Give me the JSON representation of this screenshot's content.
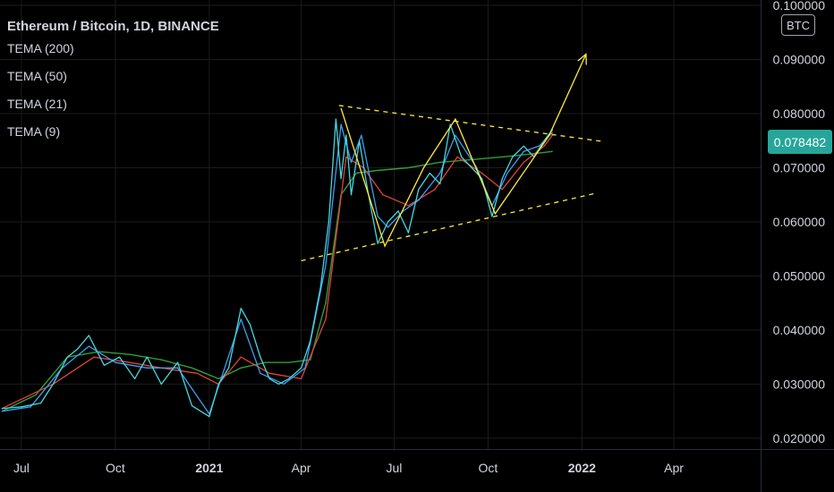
{
  "header": {
    "title": "Ethereum / Bitcoin, 1D, BINANCE",
    "indicators": [
      "TEMA (200)",
      "TEMA (50)",
      "TEMA (21)",
      "TEMA (9)"
    ]
  },
  "price_axis": {
    "unit_button": "BTC",
    "current_price": "0.078482",
    "current_price_color": "#26a69a"
  },
  "colors": {
    "background": "#000000",
    "grid": "#1c1c1c",
    "tema200": "#2e9e3a",
    "tema50": "#e0443a",
    "tema21": "#3aa0f0",
    "tema9": "#46d7e0",
    "annotation": "#ffeb3b"
  },
  "chart_data": {
    "type": "line",
    "title": "Ethereum / Bitcoin, 1D, BINANCE",
    "xlabel": "",
    "ylabel": "",
    "x_ticks": [
      "Jul",
      "Oct",
      "2021",
      "Apr",
      "Jul",
      "Oct",
      "2022",
      "Apr"
    ],
    "y_ticks": [
      "0.020000",
      "0.030000",
      "0.040000",
      "0.050000",
      "0.060000",
      "0.070000",
      "0.080000",
      "0.090000",
      "0.100000"
    ],
    "ylim": [
      0.018,
      0.101
    ],
    "xlim": [
      "2020-06-10",
      "2022-06-25"
    ],
    "grid": true,
    "series": [
      {
        "name": "TEMA (9)",
        "x": [
          "2020-06-12",
          "2020-07-01",
          "2020-07-20",
          "2020-08-01",
          "2020-08-15",
          "2020-08-25",
          "2020-09-05",
          "2020-09-20",
          "2020-10-05",
          "2020-10-20",
          "2020-11-01",
          "2020-11-15",
          "2020-12-01",
          "2020-12-15",
          "2021-01-01",
          "2021-01-10",
          "2021-01-20",
          "2021-02-01",
          "2021-02-10",
          "2021-02-20",
          "2021-03-01",
          "2021-03-10",
          "2021-03-20",
          "2021-04-01",
          "2021-04-10",
          "2021-04-20",
          "2021-04-28",
          "2021-05-05",
          "2021-05-10",
          "2021-05-15",
          "2021-05-20",
          "2021-05-28",
          "2021-06-05",
          "2021-06-15",
          "2021-06-25",
          "2021-07-05",
          "2021-07-15",
          "2021-07-25",
          "2021-08-05",
          "2021-08-15",
          "2021-08-25",
          "2021-09-05",
          "2021-09-15",
          "2021-09-25",
          "2021-10-05",
          "2021-10-15",
          "2021-10-25",
          "2021-11-05",
          "2021-11-15",
          "2021-11-25",
          "2021-12-03"
        ],
        "values": [
          0.0255,
          0.0258,
          0.0265,
          0.03,
          0.035,
          0.0365,
          0.039,
          0.0335,
          0.035,
          0.031,
          0.035,
          0.03,
          0.034,
          0.026,
          0.024,
          0.03,
          0.033,
          0.044,
          0.041,
          0.035,
          0.031,
          0.03,
          0.031,
          0.033,
          0.038,
          0.048,
          0.06,
          0.079,
          0.068,
          0.076,
          0.065,
          0.075,
          0.066,
          0.056,
          0.06,
          0.062,
          0.058,
          0.066,
          0.069,
          0.067,
          0.078,
          0.072,
          0.07,
          0.068,
          0.061,
          0.068,
          0.072,
          0.074,
          0.072,
          0.075,
          0.077
        ]
      },
      {
        "name": "TEMA (21)",
        "x": [
          "2020-06-12",
          "2020-07-10",
          "2020-08-10",
          "2020-09-05",
          "2020-10-01",
          "2020-11-01",
          "2020-12-01",
          "2021-01-01",
          "2021-02-01",
          "2021-02-20",
          "2021-03-15",
          "2021-04-05",
          "2021-04-25",
          "2021-05-10",
          "2021-05-20",
          "2021-05-30",
          "2021-06-15",
          "2021-06-25",
          "2021-07-10",
          "2021-07-25",
          "2021-08-15",
          "2021-08-30",
          "2021-09-20",
          "2021-10-05",
          "2021-10-20",
          "2021-11-05",
          "2021-11-20",
          "2021-12-03"
        ],
        "values": [
          0.025,
          0.0258,
          0.033,
          0.037,
          0.034,
          0.033,
          0.033,
          0.0245,
          0.042,
          0.032,
          0.03,
          0.033,
          0.052,
          0.078,
          0.071,
          0.076,
          0.061,
          0.059,
          0.062,
          0.064,
          0.069,
          0.076,
          0.07,
          0.063,
          0.069,
          0.073,
          0.074,
          0.0765
        ]
      },
      {
        "name": "TEMA (50)",
        "x": [
          "2020-06-12",
          "2020-08-01",
          "2020-09-10",
          "2020-10-15",
          "2020-11-15",
          "2020-12-20",
          "2021-01-10",
          "2021-02-01",
          "2021-03-01",
          "2021-04-01",
          "2021-04-25",
          "2021-05-15",
          "2021-06-01",
          "2021-06-20",
          "2021-07-15",
          "2021-08-10",
          "2021-09-01",
          "2021-09-25",
          "2021-10-15",
          "2021-11-05",
          "2021-11-25",
          "2021-12-03"
        ],
        "values": [
          0.0255,
          0.03,
          0.035,
          0.034,
          0.033,
          0.032,
          0.03,
          0.035,
          0.032,
          0.031,
          0.042,
          0.072,
          0.07,
          0.065,
          0.063,
          0.066,
          0.072,
          0.069,
          0.066,
          0.071,
          0.074,
          0.076
        ]
      },
      {
        "name": "TEMA (200)",
        "x": [
          "2020-06-12",
          "2020-07-15",
          "2020-08-15",
          "2020-09-15",
          "2020-10-15",
          "2020-11-15",
          "2020-12-15",
          "2021-01-10",
          "2021-02-01",
          "2021-02-25",
          "2021-03-20",
          "2021-04-10",
          "2021-04-25",
          "2021-05-10",
          "2021-05-25",
          "2021-06-15",
          "2021-07-15",
          "2021-08-15",
          "2021-09-15",
          "2021-10-15",
          "2021-11-10",
          "2021-12-03"
        ],
        "values": [
          0.025,
          0.028,
          0.035,
          0.036,
          0.0355,
          0.0345,
          0.033,
          0.031,
          0.033,
          0.034,
          0.034,
          0.0345,
          0.045,
          0.065,
          0.069,
          0.0695,
          0.07,
          0.071,
          0.0715,
          0.072,
          0.0725,
          0.073
        ]
      }
    ],
    "annotations": [
      {
        "name": "upper trendline",
        "x": [
          "2021-05-08",
          "2022-01-20"
        ],
        "y": [
          0.0815,
          0.0749
        ],
        "style": "dashed"
      },
      {
        "name": "lower trendline",
        "x": [
          "2021-04-01",
          "2022-01-15"
        ],
        "y": [
          0.0528,
          0.0653
        ],
        "style": "dashed"
      },
      {
        "name": "zigzag",
        "x": [
          "2021-05-10",
          "2021-06-22",
          "2021-07-30",
          "2021-08-30",
          "2021-10-08",
          "2021-11-30",
          "2022-01-05"
        ],
        "y": [
          0.081,
          0.0555,
          0.07,
          0.079,
          0.0615,
          0.076,
          0.091
        ],
        "style": "solid",
        "arrow_end": true
      }
    ]
  }
}
